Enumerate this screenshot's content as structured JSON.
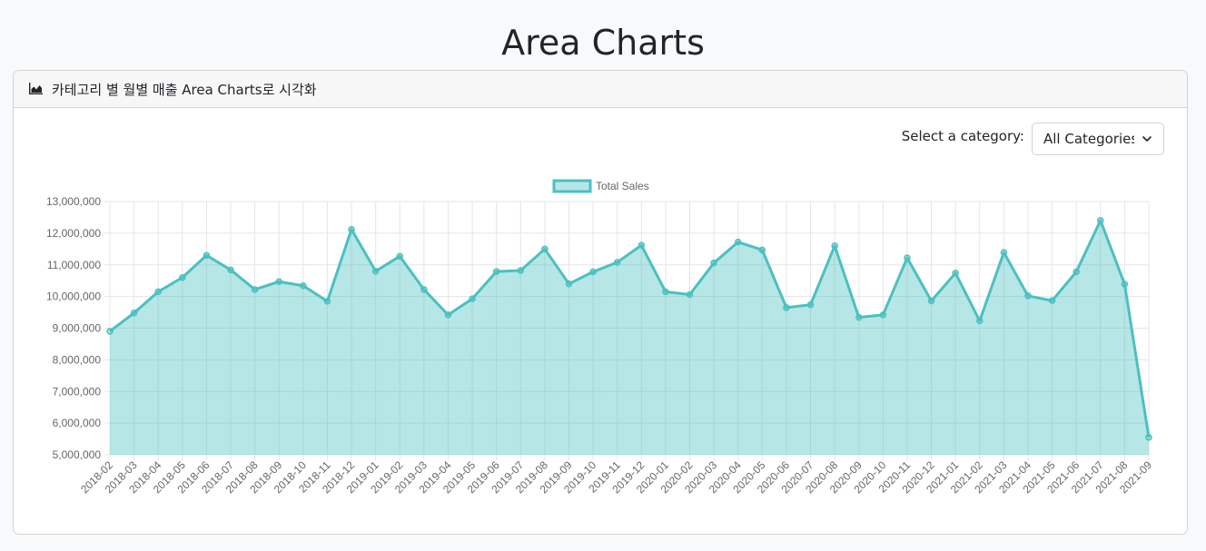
{
  "page": {
    "title": "Area Charts"
  },
  "card": {
    "header_title": "카테고리 별 월별 매출 Area Charts로 시각화",
    "header_icon": "area-chart-icon"
  },
  "controls": {
    "select_label": "Select a category:",
    "selected_option": "All Categories"
  },
  "colors": {
    "line": "#4bc0c0",
    "fill": "rgba(75,192,192,0.4)",
    "grid": "#e5e5e5"
  },
  "chart_data": {
    "type": "area",
    "legend": "Total Sales",
    "legend_position": "top-center",
    "grid": true,
    "ylim": [
      5000000,
      13000000
    ],
    "y_ticks": [
      "13,000,000",
      "12,000,000",
      "11,000,000",
      "10,000,000",
      "9,000,000",
      "8,000,000",
      "7,000,000",
      "6,000,000",
      "5,000,000"
    ],
    "y_tick_values": [
      13000000,
      12000000,
      11000000,
      10000000,
      9000000,
      8000000,
      7000000,
      6000000,
      5000000
    ],
    "categories": [
      "2018-02",
      "2018-03",
      "2018-04",
      "2018-05",
      "2018-06",
      "2018-07",
      "2018-08",
      "2018-09",
      "2018-10",
      "2018-11",
      "2018-12",
      "2019-01",
      "2019-02",
      "2019-03",
      "2019-04",
      "2019-05",
      "2019-06",
      "2019-07",
      "2019-08",
      "2019-09",
      "2019-10",
      "2019-11",
      "2019-12",
      "2020-01",
      "2020-02",
      "2020-03",
      "2020-04",
      "2020-05",
      "2020-06",
      "2020-07",
      "2020-08",
      "2020-09",
      "2020-10",
      "2020-11",
      "2020-12",
      "2021-01",
      "2021-02",
      "2021-03",
      "2021-04",
      "2021-05",
      "2021-06",
      "2021-07",
      "2021-08",
      "2021-09"
    ],
    "series": [
      {
        "name": "Total Sales",
        "values": [
          8900000,
          9480000,
          10150000,
          10600000,
          11300000,
          10840000,
          10220000,
          10470000,
          10340000,
          9850000,
          12120000,
          10800000,
          11270000,
          10220000,
          9420000,
          9930000,
          10790000,
          10820000,
          11500000,
          10400000,
          10780000,
          11080000,
          11620000,
          10150000,
          10060000,
          11060000,
          11720000,
          11470000,
          9650000,
          9740000,
          11600000,
          9340000,
          9420000,
          11220000,
          9860000,
          10740000,
          9230000,
          11390000,
          10020000,
          9870000,
          10780000,
          12400000,
          10390000,
          5550000
        ]
      }
    ]
  }
}
